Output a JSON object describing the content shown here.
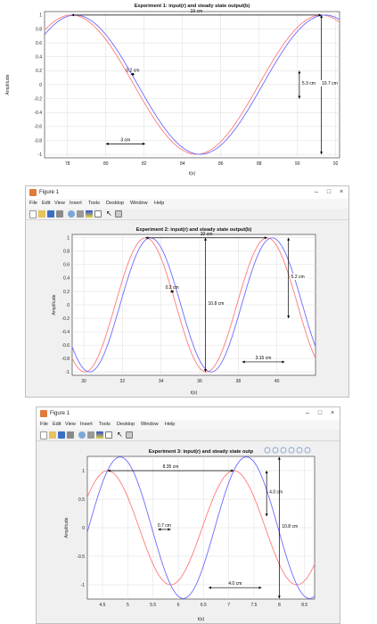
{
  "figure_window": {
    "title": "Figure 1",
    "menu": [
      "File",
      "Edit",
      "View",
      "Insert",
      "Tools",
      "Desktop",
      "Window",
      "Help"
    ],
    "toolbar_icons": [
      "new-file-icon",
      "open-icon",
      "save-icon",
      "print-icon",
      "zoom-icon",
      "link-icon",
      "insert-colorbar-icon",
      "insert-legend-icon",
      "pointer-icon",
      "tile-icon"
    ],
    "controls": [
      "minimize",
      "maximize",
      "close"
    ],
    "control_glyphs": [
      "–",
      "□",
      "×"
    ]
  },
  "axes_toolbar_icons": [
    "brush-icon",
    "data-tips-icon",
    "pan-icon",
    "zoom-in-icon",
    "zoom-out-icon",
    "home-icon"
  ],
  "colors": {
    "input": "#ff7a7a",
    "output": "#6b6bff",
    "annotation": "#000000",
    "grid": "#dcdcdc",
    "window_bg": "#f0f0f0"
  },
  "chart_data": [
    {
      "type": "line",
      "title": "Experiment 1: input(r) and steady state output(b)",
      "xlabel": "t(s)",
      "ylabel": "Amplitude",
      "xlim": [
        76.8,
        92.2
      ],
      "ylim": [
        -1.05,
        1.05
      ],
      "xticks": [
        78,
        80,
        82,
        84,
        86,
        88,
        90,
        92
      ],
      "xtick_labels": [
        "78",
        "80",
        "82",
        "84",
        "86",
        "88",
        "90",
        "92"
      ],
      "yticks": [
        1,
        0.8,
        0.6,
        0.4,
        0.2,
        0,
        -0.2,
        -0.4,
        -0.6,
        -0.8,
        -1
      ],
      "ytick_labels": [
        "1",
        "0.8",
        "0.6",
        "0.4",
        "0.2",
        "0",
        "-0.2",
        "-0.4",
        "-0.6",
        "-0.8",
        "-1"
      ],
      "grid": true,
      "series": [
        {
          "role": "input",
          "color": "#ff7a7a",
          "amplitude": 1.0,
          "period": 13.05,
          "peak_time": 78.2
        },
        {
          "role": "output",
          "color": "#6b6bff",
          "amplitude": 1.0,
          "period": 13.05,
          "peak_time": 78.4
        }
      ],
      "annotations": [
        {
          "text": "19 cm",
          "kind": "hspan",
          "x1": 78.2,
          "x2": 91.25,
          "y": 1.0
        },
        {
          "text": "0.2 cm",
          "kind": "hspan",
          "x1": 81.3,
          "x2": 81.5,
          "y": 0.15
        },
        {
          "text": "5.3 cm",
          "kind": "vspan",
          "x": 90.1,
          "y1": 0.2,
          "y2": -0.2
        },
        {
          "text": "10.7 cm",
          "kind": "vspan",
          "x": 91.25,
          "y1": 1.0,
          "y2": -1.0
        },
        {
          "text": "3 cm",
          "kind": "hspan",
          "x1": 80.0,
          "x2": 82.05,
          "y": -0.85
        }
      ]
    },
    {
      "type": "line",
      "title": "Experiment 2: input(r) and steady state output(b)",
      "xlabel": "t(s)",
      "ylabel": "Amplitude",
      "xlim": [
        29.4,
        42.0
      ],
      "ylim": [
        -1.05,
        1.05
      ],
      "xticks": [
        30,
        32,
        34,
        36,
        38,
        40
      ],
      "xtick_labels": [
        "30",
        "32",
        "34",
        "36",
        "38",
        "40"
      ],
      "yticks": [
        1,
        0.8,
        0.6,
        0.4,
        0.2,
        0,
        -0.2,
        -0.4,
        -0.6,
        -0.8,
        -1
      ],
      "ytick_labels": [
        "1",
        "0.8",
        "0.6",
        "0.4",
        "0.2",
        "0",
        "-0.2",
        "-0.4",
        "-0.6",
        "-0.8",
        "-1"
      ],
      "grid": true,
      "series": [
        {
          "role": "input",
          "color": "#ff7a7a",
          "amplitude": 1.0,
          "period": 6.3,
          "peak_time": 33.2
        },
        {
          "role": "output",
          "color": "#6b6bff",
          "amplitude": 1.0,
          "period": 6.3,
          "peak_time": 33.45
        }
      ],
      "annotations": [
        {
          "text": "10 cm",
          "kind": "hspan",
          "x1": 33.2,
          "x2": 39.5,
          "y": 1.0
        },
        {
          "text": "5.2 cm",
          "kind": "vspan",
          "x": 40.6,
          "y1": 1.0,
          "y2": -0.2
        },
        {
          "text": "10.8 cm",
          "kind": "vspan",
          "x": 36.3,
          "y1": 1.0,
          "y2": -1.0
        },
        {
          "text": "0.2 cm",
          "kind": "hspan",
          "x1": 34.5,
          "x2": 34.65,
          "y": 0.2
        },
        {
          "text": "3.15 cm",
          "kind": "hspan",
          "x1": 38.2,
          "x2": 40.4,
          "y": -0.85
        }
      ]
    },
    {
      "type": "line",
      "title": "Experiment 3: input(r) and steady state outp",
      "xlabel": "t(s)",
      "ylabel": "Amplitude",
      "xlim": [
        4.2,
        8.7
      ],
      "ylim": [
        -1.25,
        1.25
      ],
      "xticks": [
        4.5,
        5,
        5.5,
        6,
        6.5,
        7,
        7.5,
        8,
        8.5
      ],
      "xtick_labels": [
        "4.5",
        "5",
        "5.5",
        "6",
        "6.5",
        "7",
        "7.5",
        "8",
        "8.5"
      ],
      "yticks": [
        1,
        0.5,
        0,
        -0.5,
        -1
      ],
      "ytick_labels": [
        "1",
        "0.5",
        "0",
        "-0.5",
        "-1"
      ],
      "grid": true,
      "series": [
        {
          "role": "input",
          "color": "#ff7a7a",
          "amplitude": 1.0,
          "period": 2.5,
          "peak_time": 4.6
        },
        {
          "role": "output",
          "color": "#6b6bff",
          "amplitude": 1.24,
          "period": 2.5,
          "peak_time": 4.85
        }
      ],
      "annotations": [
        {
          "text": "8.35 cm",
          "kind": "hspan",
          "x1": 4.6,
          "x2": 7.1,
          "y": 1.0
        },
        {
          "text": "4.0 cm",
          "kind": "vspan",
          "x": 7.75,
          "y1": 1.0,
          "y2": 0.2
        },
        {
          "text": "10.8 cm",
          "kind": "vspan",
          "x": 8.0,
          "y1": 1.24,
          "y2": -1.24
        },
        {
          "text": "0.7 cm",
          "kind": "hspan",
          "x1": 5.6,
          "x2": 5.85,
          "y": -0.03
        },
        {
          "text": "4.0 cm",
          "kind": "hspan",
          "x1": 6.6,
          "x2": 7.65,
          "y": -1.05
        }
      ]
    }
  ]
}
